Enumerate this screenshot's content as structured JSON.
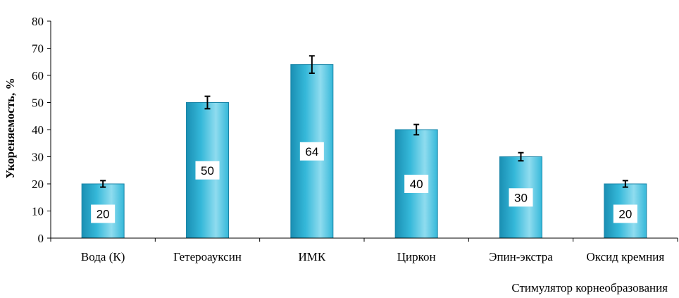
{
  "chart_data": {
    "type": "bar",
    "title": "",
    "xlabel": "Стимулятор корнеобразования",
    "ylabel": "Укореняемость, %",
    "ylim": [
      0,
      80
    ],
    "yticks": [
      0,
      10,
      20,
      30,
      40,
      50,
      60,
      70,
      80
    ],
    "grid": false,
    "categories": [
      "Вода (К)",
      "Гетероауксин",
      "ИМК",
      "Циркон",
      "Эпин-экстра",
      "Оксид кремния"
    ],
    "values": [
      20,
      50,
      64,
      40,
      30,
      20
    ],
    "error_bars": [
      1.2,
      2.3,
      3.2,
      1.9,
      1.5,
      1.2
    ],
    "data_labels": [
      "20",
      "50",
      "64",
      "40",
      "30",
      "20"
    ],
    "colors": {
      "bar_light": "#8fdcef",
      "bar_mid": "#35b8d9",
      "bar_dark": "#1a8fb3",
      "bar_edge": "#1b86a8",
      "axis": "#000000"
    }
  }
}
